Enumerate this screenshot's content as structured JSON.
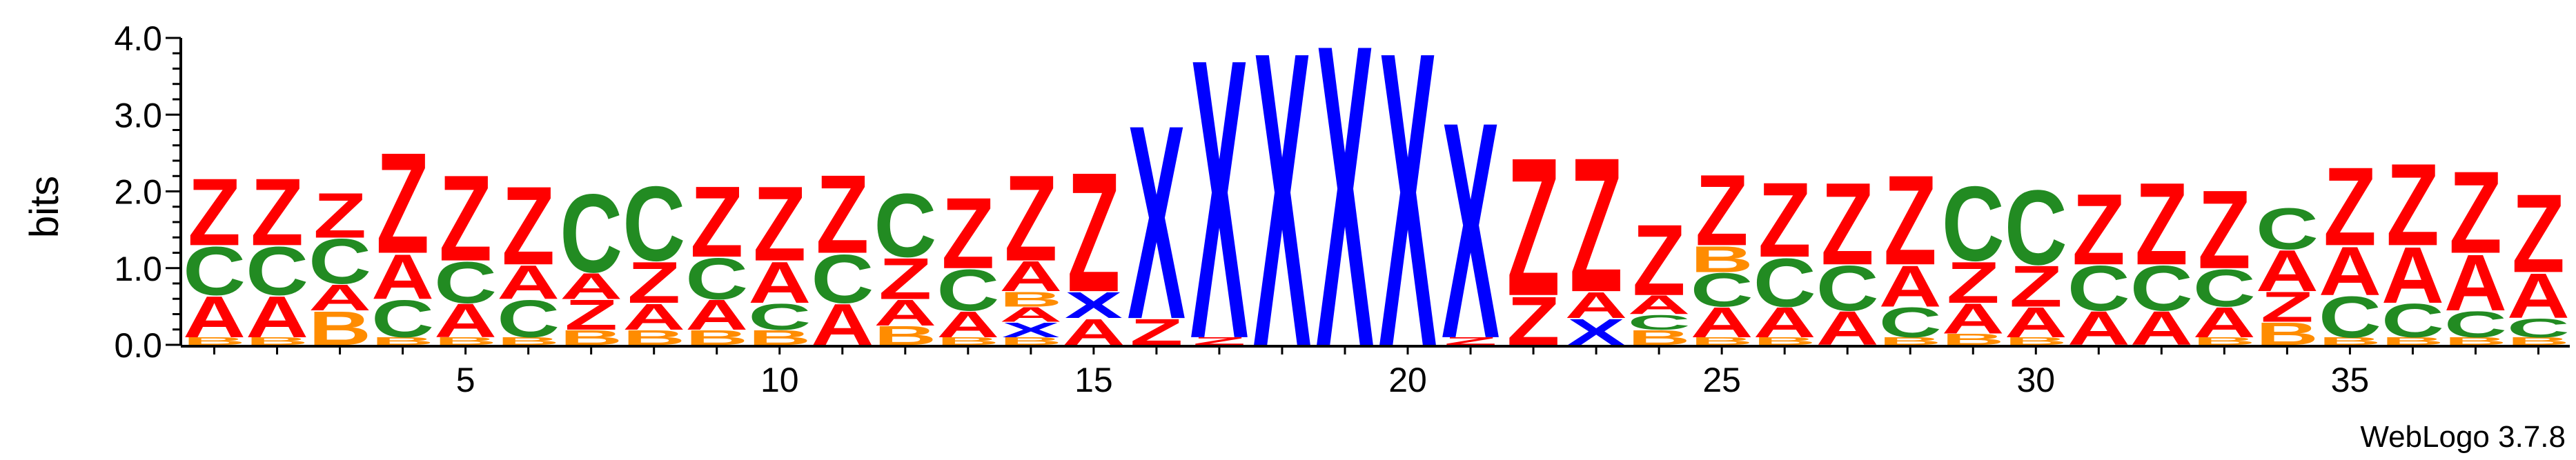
{
  "chart_data": {
    "type": "sequence-logo",
    "ylabel": "bits",
    "ylim": [
      0,
      4.0
    ],
    "y_ticks": [
      "0.0",
      "1.0",
      "2.0",
      "3.0",
      "4.0"
    ],
    "x_ticks": [
      "5",
      "10",
      "15",
      "20",
      "25",
      "30",
      "35"
    ],
    "x_tick_positions": [
      5,
      10,
      15,
      20,
      25,
      30,
      35
    ],
    "positions": 38,
    "colors": {
      "Z": "#ff0000",
      "A": "#ff0000",
      "C": "#228b22",
      "B": "#ff8c00",
      "X": "#0000ff",
      "P": "#ff8c00",
      "Y": "#0000ff",
      "T": "#0000ff"
    },
    "columns": [
      {
        "position": 1,
        "letters": [
          [
            "B",
            0.1
          ],
          [
            "A",
            0.55
          ],
          [
            "C",
            0.65
          ],
          [
            "Z",
            0.9
          ]
        ]
      },
      {
        "position": 2,
        "letters": [
          [
            "B",
            0.1
          ],
          [
            "A",
            0.55
          ],
          [
            "C",
            0.65
          ],
          [
            "Z",
            0.9
          ]
        ]
      },
      {
        "position": 3,
        "letters": [
          [
            "B",
            0.45
          ],
          [
            "A",
            0.35
          ],
          [
            "C",
            0.6
          ],
          [
            "Z",
            0.6
          ]
        ]
      },
      {
        "position": 4,
        "letters": [
          [
            "B",
            0.1
          ],
          [
            "C",
            0.5
          ],
          [
            "A",
            0.6
          ],
          [
            "Z",
            1.35
          ]
        ]
      },
      {
        "position": 5,
        "letters": [
          [
            "B",
            0.1
          ],
          [
            "A",
            0.45
          ],
          [
            "C",
            0.55
          ],
          [
            "Z",
            1.15
          ]
        ]
      },
      {
        "position": 6,
        "letters": [
          [
            "B",
            0.1
          ],
          [
            "C",
            0.5
          ],
          [
            "A",
            0.45
          ],
          [
            "Z",
            1.05
          ]
        ]
      },
      {
        "position": 7,
        "letters": [
          [
            "B",
            0.2
          ],
          [
            "Z",
            0.4
          ],
          [
            "A",
            0.35
          ],
          [
            "C",
            1.05
          ]
        ]
      },
      {
        "position": 8,
        "letters": [
          [
            "B",
            0.2
          ],
          [
            "A",
            0.35
          ],
          [
            "Z",
            0.55
          ],
          [
            "C",
            1.0
          ]
        ]
      },
      {
        "position": 9,
        "letters": [
          [
            "B",
            0.2
          ],
          [
            "A",
            0.4
          ],
          [
            "C",
            0.55
          ],
          [
            "Z",
            0.95
          ]
        ]
      },
      {
        "position": 10,
        "letters": [
          [
            "B",
            0.2
          ],
          [
            "C",
            0.35
          ],
          [
            "A",
            0.55
          ],
          [
            "Z",
            1.0
          ]
        ]
      },
      {
        "position": 11,
        "letters": [
          [
            "A",
            0.55
          ],
          [
            "C",
            0.65
          ],
          [
            "Z",
            1.05
          ]
        ]
      },
      {
        "position": 12,
        "letters": [
          [
            "B",
            0.25
          ],
          [
            "A",
            0.35
          ],
          [
            "Z",
            0.55
          ],
          [
            "C",
            0.85
          ]
        ]
      },
      {
        "position": 13,
        "letters": [
          [
            "B",
            0.1
          ],
          [
            "A",
            0.35
          ],
          [
            "C",
            0.55
          ],
          [
            "Z",
            0.95
          ]
        ]
      },
      {
        "position": 14,
        "letters": [
          [
            "B",
            0.1
          ],
          [
            "X",
            0.2
          ],
          [
            "A",
            0.2
          ],
          [
            "B",
            0.2
          ],
          [
            "A",
            0.4
          ],
          [
            "Z",
            1.15
          ]
        ]
      },
      {
        "position": 15,
        "letters": [
          [
            "A",
            0.35
          ],
          [
            "X",
            0.35
          ],
          [
            "Z",
            1.6
          ]
        ]
      },
      {
        "position": 16,
        "letters": [
          [
            "Z",
            0.35
          ],
          [
            "X",
            2.6
          ]
        ]
      },
      {
        "position": 17,
        "letters": [
          [
            "Z",
            0.1
          ],
          [
            "X",
            3.75
          ]
        ]
      },
      {
        "position": 18,
        "letters": [
          [
            "X",
            3.95
          ]
        ]
      },
      {
        "position": 19,
        "letters": [
          [
            "X",
            4.05
          ]
        ]
      },
      {
        "position": 20,
        "letters": [
          [
            "X",
            3.95
          ]
        ]
      },
      {
        "position": 21,
        "letters": [
          [
            "Z",
            0.1
          ],
          [
            "X",
            2.9
          ]
        ]
      },
      {
        "position": 22,
        "letters": [
          [
            "Z",
            0.65
          ],
          [
            "Z",
            1.85
          ]
        ]
      },
      {
        "position": 23,
        "letters": [
          [
            "X",
            0.35
          ],
          [
            "A",
            0.35
          ],
          [
            "Z",
            1.8
          ]
        ]
      },
      {
        "position": 24,
        "letters": [
          [
            "B",
            0.2
          ],
          [
            "C",
            0.2
          ],
          [
            "A",
            0.25
          ],
          [
            "Z",
            0.95
          ]
        ]
      },
      {
        "position": 25,
        "letters": [
          [
            "B",
            0.1
          ],
          [
            "A",
            0.4
          ],
          [
            "C",
            0.45
          ],
          [
            "B",
            0.35
          ],
          [
            "Z",
            0.95
          ]
        ]
      },
      {
        "position": 26,
        "letters": [
          [
            "B",
            0.1
          ],
          [
            "A",
            0.4
          ],
          [
            "C",
            0.65
          ],
          [
            "Z",
            1.0
          ]
        ]
      },
      {
        "position": 27,
        "letters": [
          [
            "A",
            0.45
          ],
          [
            "C",
            0.6
          ],
          [
            "Z",
            1.1
          ]
        ]
      },
      {
        "position": 28,
        "letters": [
          [
            "B",
            0.1
          ],
          [
            "C",
            0.4
          ],
          [
            "A",
            0.55
          ],
          [
            "Z",
            1.2
          ]
        ]
      },
      {
        "position": 29,
        "letters": [
          [
            "B",
            0.15
          ],
          [
            "A",
            0.4
          ],
          [
            "Z",
            0.55
          ],
          [
            "C",
            1.0
          ]
        ]
      },
      {
        "position": 30,
        "letters": [
          [
            "B",
            0.1
          ],
          [
            "A",
            0.4
          ],
          [
            "Z",
            0.55
          ],
          [
            "C",
            1.0
          ]
        ]
      },
      {
        "position": 31,
        "letters": [
          [
            "A",
            0.45
          ],
          [
            "C",
            0.6
          ],
          [
            "Z",
            0.95
          ]
        ]
      },
      {
        "position": 32,
        "letters": [
          [
            "A",
            0.45
          ],
          [
            "C",
            0.6
          ],
          [
            "Z",
            1.1
          ]
        ]
      },
      {
        "position": 33,
        "letters": [
          [
            "B",
            0.1
          ],
          [
            "A",
            0.4
          ],
          [
            "C",
            0.5
          ],
          [
            "Z",
            1.05
          ]
        ]
      },
      {
        "position": 34,
        "letters": [
          [
            "B",
            0.3
          ],
          [
            "Z",
            0.4
          ],
          [
            "A",
            0.55
          ],
          [
            "C",
            0.55
          ]
        ]
      },
      {
        "position": 35,
        "letters": [
          [
            "B",
            0.1
          ],
          [
            "C",
            0.55
          ],
          [
            "A",
            0.65
          ],
          [
            "Z",
            1.05
          ]
        ]
      },
      {
        "position": 36,
        "letters": [
          [
            "B",
            0.1
          ],
          [
            "C",
            0.45
          ],
          [
            "A",
            0.75
          ],
          [
            "Z",
            1.1
          ]
        ]
      },
      {
        "position": 37,
        "letters": [
          [
            "B",
            0.1
          ],
          [
            "C",
            0.35
          ],
          [
            "A",
            0.75
          ],
          [
            "Z",
            1.1
          ]
        ]
      },
      {
        "position": 38,
        "letters": [
          [
            "B",
            0.1
          ],
          [
            "C",
            0.25
          ],
          [
            "A",
            0.6
          ],
          [
            "Z",
            1.05
          ]
        ]
      }
    ]
  },
  "footer": {
    "credit": "WebLogo 3.7.8"
  }
}
